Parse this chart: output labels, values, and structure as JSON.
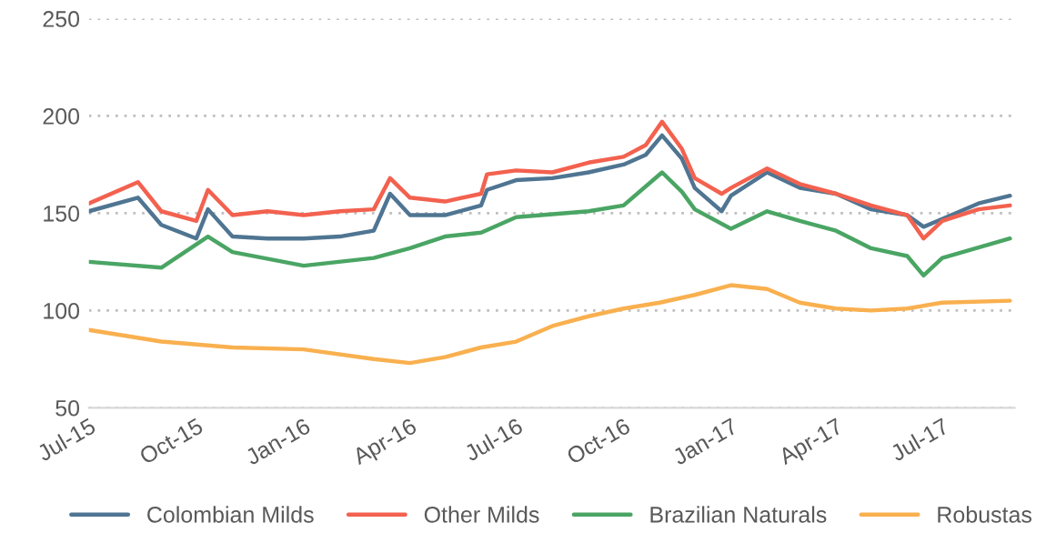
{
  "chart_data": {
    "type": "line",
    "series": [
      {
        "name": "Colombian Milds",
        "color": "#4f7592",
        "x": [
          "2015-07-01",
          "2015-08-12",
          "2015-09-01",
          "2015-10-01",
          "2015-10-11",
          "2015-11-01",
          "2015-12-01",
          "2016-01-01",
          "2016-02-01",
          "2016-03-01",
          "2016-03-15",
          "2016-04-01",
          "2016-05-01",
          "2016-06-01",
          "2016-06-06",
          "2016-07-01",
          "2016-08-01",
          "2016-09-01",
          "2016-10-01",
          "2016-10-20",
          "2016-11-03",
          "2016-11-20",
          "2016-12-01",
          "2016-12-24",
          "2017-01-01",
          "2017-02-01",
          "2017-03-01",
          "2017-04-01",
          "2017-05-01",
          "2017-06-01",
          "2017-06-15",
          "2017-07-01",
          "2017-08-01",
          "2017-08-28"
        ],
        "values": [
          151,
          158,
          144,
          137,
          152,
          138,
          137,
          137,
          138,
          141,
          160,
          149,
          149,
          154,
          162,
          167,
          168,
          171,
          175,
          180,
          190,
          178,
          163,
          151,
          159,
          171,
          163,
          160,
          152,
          149,
          143,
          147,
          155,
          159
        ]
      },
      {
        "name": "Other Milds",
        "color": "#f3614f",
        "x": [
          "2015-07-01",
          "2015-08-12",
          "2015-09-01",
          "2015-10-01",
          "2015-10-11",
          "2015-11-01",
          "2015-12-01",
          "2016-01-01",
          "2016-02-01",
          "2016-03-01",
          "2016-03-15",
          "2016-04-01",
          "2016-05-01",
          "2016-06-01",
          "2016-06-06",
          "2016-07-01",
          "2016-08-01",
          "2016-09-01",
          "2016-10-01",
          "2016-10-20",
          "2016-11-03",
          "2016-11-20",
          "2016-12-01",
          "2016-12-24",
          "2017-01-01",
          "2017-02-01",
          "2017-03-01",
          "2017-04-01",
          "2017-05-01",
          "2017-06-01",
          "2017-06-15",
          "2017-07-01",
          "2017-08-01",
          "2017-08-28"
        ],
        "values": [
          155,
          166,
          151,
          146,
          162,
          149,
          151,
          149,
          151,
          152,
          168,
          158,
          156,
          160,
          170,
          172,
          171,
          176,
          179,
          185,
          197,
          183,
          168,
          160,
          163,
          173,
          165,
          160,
          154,
          149,
          137,
          146,
          152,
          154
        ]
      },
      {
        "name": "Brazilian Naturals",
        "color": "#4aa564",
        "x": [
          "2015-07-01",
          "2015-09-01",
          "2015-10-11",
          "2015-11-01",
          "2016-01-01",
          "2016-03-01",
          "2016-04-01",
          "2016-05-01",
          "2016-06-01",
          "2016-07-01",
          "2016-09-01",
          "2016-10-01",
          "2016-11-03",
          "2016-11-20",
          "2016-12-01",
          "2017-01-01",
          "2017-02-01",
          "2017-03-01",
          "2017-04-01",
          "2017-05-01",
          "2017-06-01",
          "2017-06-15",
          "2017-07-01",
          "2017-08-28"
        ],
        "values": [
          125,
          122,
          138,
          130,
          123,
          127,
          132,
          138,
          140,
          148,
          151,
          154,
          171,
          161,
          152,
          142,
          151,
          146,
          141,
          132,
          128,
          118,
          127,
          137
        ]
      },
      {
        "name": "Robustas",
        "color": "#f9b04f",
        "x": [
          "2015-07-01",
          "2015-09-01",
          "2015-11-01",
          "2016-01-01",
          "2016-03-01",
          "2016-04-01",
          "2016-05-01",
          "2016-06-01",
          "2016-07-01",
          "2016-08-01",
          "2016-09-01",
          "2016-10-01",
          "2016-11-01",
          "2016-12-01",
          "2017-01-01",
          "2017-02-01",
          "2017-03-01",
          "2017-04-01",
          "2017-05-01",
          "2017-06-01",
          "2017-07-01",
          "2017-08-28"
        ],
        "values": [
          90,
          84,
          81,
          80,
          75,
          73,
          76,
          81,
          84,
          92,
          97,
          101,
          104,
          108,
          113,
          111,
          104,
          101,
          100,
          101,
          104,
          105
        ]
      }
    ],
    "xlim": [
      "2015-07-01",
      "2017-09-01"
    ],
    "xticks": [
      {
        "value": "2015-07-01",
        "label": "Jul-15"
      },
      {
        "value": "2015-10-01",
        "label": "Oct-15"
      },
      {
        "value": "2016-01-01",
        "label": "Jan-16"
      },
      {
        "value": "2016-04-01",
        "label": "Apr-16"
      },
      {
        "value": "2016-07-01",
        "label": "Jul-16"
      },
      {
        "value": "2016-10-01",
        "label": "Oct-16"
      },
      {
        "value": "2017-01-01",
        "label": "Jan-17"
      },
      {
        "value": "2017-04-01",
        "label": "Apr-17"
      },
      {
        "value": "2017-07-01",
        "label": "Jul-17"
      }
    ],
    "ylim": [
      50,
      250
    ],
    "yticks": [
      50,
      100,
      150,
      200,
      250
    ],
    "grid": "y",
    "legend": "bottom",
    "marker": "none",
    "line_style": "solid"
  }
}
